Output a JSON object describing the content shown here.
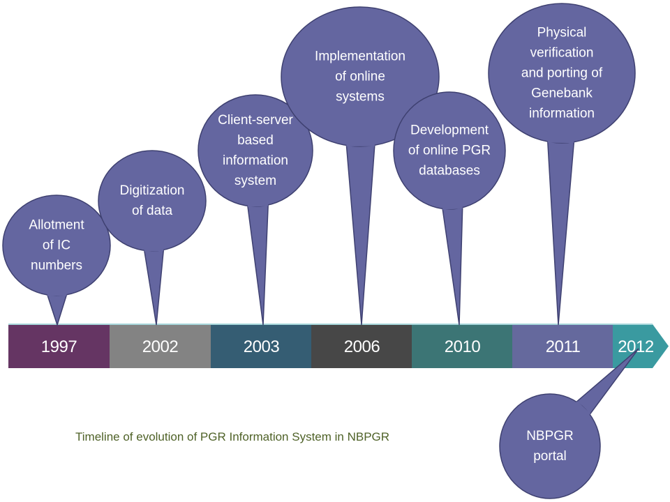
{
  "caption": "Timeline of evolution of PGR Information System in NBPGR",
  "colors": {
    "bubble_fill": "#6466a0",
    "bubble_stroke": "#3e4070",
    "caption": "#4f6228"
  },
  "timeline": [
    {
      "year": "1997",
      "color": "#653563"
    },
    {
      "year": "2002",
      "color": "#838383"
    },
    {
      "year": "2003",
      "color": "#355d73"
    },
    {
      "year": "2006",
      "color": "#474747"
    },
    {
      "year": "2010",
      "color": "#3c7575"
    },
    {
      "year": "2011",
      "color": "#65699d"
    },
    {
      "year": "2012",
      "color": "#3a9aa0"
    }
  ],
  "events": [
    {
      "lines": [
        "Allotment",
        "of IC",
        "numbers"
      ],
      "year": "1997"
    },
    {
      "lines": [
        "Digitization",
        "of data"
      ],
      "year": "2002"
    },
    {
      "lines": [
        "Client-server",
        "based",
        "information",
        "system"
      ],
      "year": "2003"
    },
    {
      "lines": [
        "Implementation",
        "of online",
        "systems"
      ],
      "year": "2006"
    },
    {
      "lines": [
        "Development",
        "of online PGR",
        "databases"
      ],
      "year": "2010"
    },
    {
      "lines": [
        "Physical",
        "verification",
        "and porting of",
        "Genebank",
        "information"
      ],
      "year": "2011"
    },
    {
      "lines": [
        "NBPGR",
        "portal"
      ],
      "year": "2012"
    }
  ]
}
